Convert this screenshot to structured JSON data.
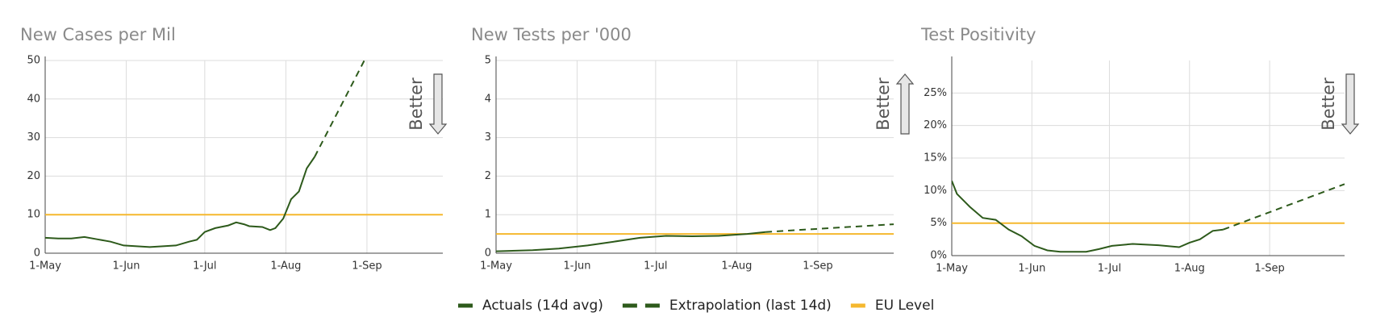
{
  "chart_data": [
    {
      "type": "line",
      "title": "New Cases per Mil",
      "annotation": "Better",
      "arrow": "down",
      "xlim": [
        "1-May",
        "30-Sep"
      ],
      "xticks": [
        "1-May",
        "1-Jun",
        "1-Jul",
        "1-Aug",
        "1-Sep"
      ],
      "ylim": [
        0,
        50
      ],
      "yticks": [
        0,
        10,
        20,
        30,
        40,
        50
      ],
      "grid": true,
      "series": [
        {
          "name": "Actuals (14d avg)",
          "color": "#2d5a1b",
          "dashed": false,
          "x": [
            "1-May",
            "6-May",
            "11-May",
            "16-May",
            "21-May",
            "26-May",
            "31-May",
            "5-Jun",
            "10-Jun",
            "15-Jun",
            "20-Jun",
            "25-Jun",
            "28-Jun",
            "1-Jul",
            "5-Jul",
            "10-Jul",
            "13-Jul",
            "16-Jul",
            "18-Jul",
            "23-Jul",
            "26-Jul",
            "28-Jul",
            "31-Jul",
            "3-Aug",
            "6-Aug",
            "9-Aug",
            "12-Aug"
          ],
          "values": [
            4,
            3.8,
            3.8,
            4.2,
            3.6,
            3.0,
            2.0,
            1.8,
            1.6,
            1.8,
            2.0,
            3.0,
            3.5,
            5.5,
            6.5,
            7.2,
            8,
            7.5,
            7.0,
            6.8,
            6.0,
            6.5,
            9,
            14,
            16,
            22,
            25
          ]
        },
        {
          "name": "Extrapolation (last 14d)",
          "color": "#2d5a1b",
          "dashed": true,
          "x": [
            "12-Aug",
            "31-Aug"
          ],
          "values": [
            25,
            50
          ]
        },
        {
          "name": "EU Level",
          "color": "#f5b82e",
          "dashed": false,
          "x": [
            "1-May",
            "30-Sep"
          ],
          "values": [
            10,
            10
          ]
        }
      ]
    },
    {
      "type": "line",
      "title": "New Tests per '000",
      "annotation": "Better",
      "arrow": "up",
      "xlim": [
        "1-May",
        "30-Sep"
      ],
      "xticks": [
        "1-May",
        "1-Jun",
        "1-Jul",
        "1-Aug",
        "1-Sep"
      ],
      "ylim": [
        0,
        5
      ],
      "yticks": [
        0,
        1,
        2,
        3,
        4,
        5
      ],
      "grid": true,
      "series": [
        {
          "name": "Actuals (14d avg)",
          "color": "#2d5a1b",
          "dashed": false,
          "x": [
            "1-May",
            "15-May",
            "25-May",
            "5-Jun",
            "15-Jun",
            "25-Jun",
            "5-Jul",
            "15-Jul",
            "25-Jul",
            "5-Aug",
            "12-Aug"
          ],
          "values": [
            0.05,
            0.08,
            0.12,
            0.2,
            0.3,
            0.4,
            0.45,
            0.44,
            0.45,
            0.5,
            0.55
          ]
        },
        {
          "name": "Extrapolation (last 14d)",
          "color": "#2d5a1b",
          "dashed": true,
          "x": [
            "12-Aug",
            "30-Sep"
          ],
          "values": [
            0.55,
            0.75
          ]
        },
        {
          "name": "EU Level",
          "color": "#f5b82e",
          "dashed": false,
          "x": [
            "1-May",
            "30-Sep"
          ],
          "values": [
            0.5,
            0.5
          ]
        }
      ]
    },
    {
      "type": "line",
      "title": "Test Positivity",
      "annotation": "Better",
      "arrow": "down",
      "xlim": [
        "1-May",
        "30-Sep"
      ],
      "xticks": [
        "1-May",
        "1-Jun",
        "1-Jul",
        "1-Aug",
        "1-Sep"
      ],
      "ylim": [
        0,
        30
      ],
      "yticks": [
        {
          "value": 0,
          "label": "0%"
        },
        {
          "value": 5,
          "label": "5%"
        },
        {
          "value": 10,
          "label": "10%"
        },
        {
          "value": 15,
          "label": "15%"
        },
        {
          "value": 20,
          "label": "20%"
        },
        {
          "value": 25,
          "label": "25%"
        }
      ],
      "grid": true,
      "series": [
        {
          "name": "Actuals (14d avg)",
          "color": "#2d5a1b",
          "dashed": false,
          "x": [
            "1-May",
            "3-May",
            "8-May",
            "13-May",
            "18-May",
            "23-May",
            "28-May",
            "2-Jun",
            "7-Jun",
            "12-Jun",
            "22-Jun",
            "27-Jun",
            "2-Jul",
            "10-Jul",
            "20-Jul",
            "28-Jul",
            "1-Aug",
            "5-Aug",
            "10-Aug",
            "14-Aug"
          ],
          "values": [
            11.5,
            9.5,
            7.5,
            5.8,
            5.5,
            4,
            3,
            1.5,
            0.8,
            0.6,
            0.6,
            1.0,
            1.5,
            1.8,
            1.6,
            1.3,
            2,
            2.5,
            3.8,
            4
          ]
        },
        {
          "name": "Extrapolation (last 14d)",
          "color": "#2d5a1b",
          "dashed": true,
          "x": [
            "14-Aug",
            "30-Sep"
          ],
          "values": [
            4,
            11
          ]
        },
        {
          "name": "EU Level",
          "color": "#f5b82e",
          "dashed": false,
          "x": [
            "1-May",
            "30-Sep"
          ],
          "values": [
            5,
            5
          ]
        }
      ]
    }
  ]
}
